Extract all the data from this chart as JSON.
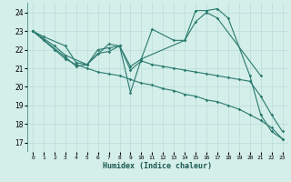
{
  "title": "",
  "xlabel": "Humidex (Indice chaleur)",
  "bg_color": "#d4eeea",
  "grid_color": "#b8ddd8",
  "line_color": "#2a7a6e",
  "xlim": [
    -0.5,
    23.5
  ],
  "ylim": [
    16.5,
    24.5
  ],
  "yticks": [
    17,
    18,
    19,
    20,
    21,
    22,
    23,
    24
  ],
  "xticks": [
    0,
    1,
    2,
    3,
    4,
    5,
    6,
    7,
    8,
    9,
    10,
    11,
    12,
    13,
    14,
    15,
    16,
    17,
    18,
    19,
    20,
    21,
    22,
    23
  ],
  "series": [
    {
      "x": [
        0,
        1,
        3,
        4,
        5,
        7,
        8,
        9,
        10,
        11,
        13,
        14,
        15,
        16,
        17,
        18,
        20,
        21,
        22,
        23
      ],
      "y": [
        23,
        22.7,
        22.2,
        21.3,
        21.2,
        22.3,
        22.2,
        19.7,
        21.5,
        23.1,
        22.5,
        22.5,
        24.1,
        24.1,
        24.2,
        23.7,
        20.6,
        18.5,
        17.6,
        17.2
      ]
    },
    {
      "x": [
        0,
        2,
        3,
        5,
        6,
        7,
        8,
        9,
        10,
        14,
        15,
        16,
        17,
        21
      ],
      "y": [
        23,
        22.2,
        21.7,
        21.2,
        22.0,
        22.1,
        22.2,
        21.1,
        21.5,
        22.5,
        23.5,
        24.0,
        23.7,
        20.6
      ]
    },
    {
      "x": [
        0,
        3,
        4,
        5,
        6,
        7,
        8,
        9,
        10,
        11,
        12,
        13,
        14,
        15,
        16,
        17,
        18,
        19,
        20,
        21,
        22,
        23
      ],
      "y": [
        23,
        21.6,
        21.1,
        21.2,
        21.8,
        21.9,
        22.2,
        20.9,
        21.4,
        21.2,
        21.1,
        21.0,
        20.9,
        20.8,
        20.7,
        20.6,
        20.5,
        20.4,
        20.3,
        19.5,
        18.5,
        17.6
      ]
    },
    {
      "x": [
        0,
        1,
        2,
        3,
        4,
        5,
        6,
        7,
        8,
        9,
        10,
        11,
        12,
        13,
        14,
        15,
        16,
        17,
        18,
        19,
        20,
        21,
        22,
        23
      ],
      "y": [
        23,
        22.5,
        22.0,
        21.5,
        21.2,
        21.0,
        20.8,
        20.7,
        20.6,
        20.4,
        20.2,
        20.1,
        19.9,
        19.8,
        19.6,
        19.5,
        19.3,
        19.2,
        19.0,
        18.8,
        18.5,
        18.2,
        17.8,
        17.2
      ]
    }
  ]
}
